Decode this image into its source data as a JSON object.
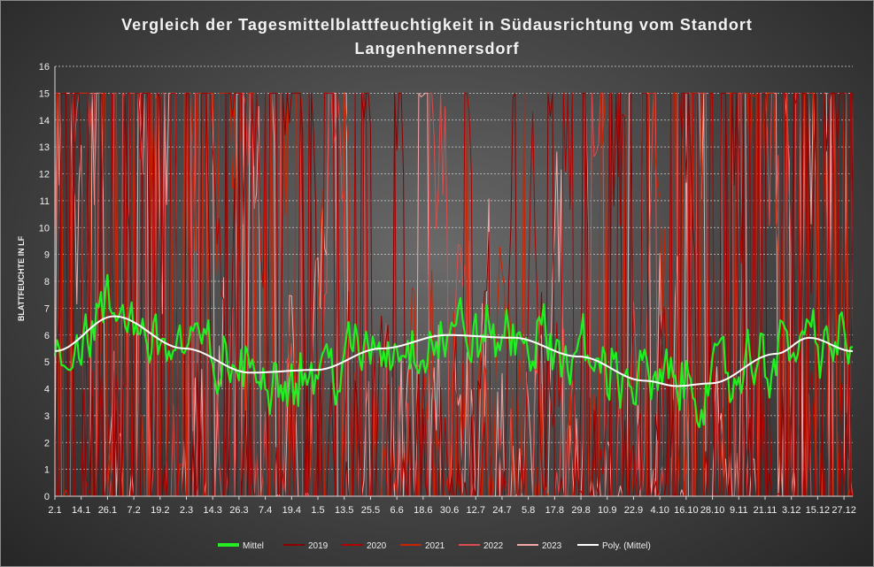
{
  "chart_data": {
    "type": "line",
    "title_line1": "Vergleich der Tagesmittelblattfeuchtigkeit in Südausrichtung vom Standort",
    "title_line2": "Langenhennersdorf",
    "ylabel": "BLATTFEUCHTE IN LF",
    "ylim": [
      0,
      16
    ],
    "yticks": [
      "0",
      "1",
      "2",
      "3",
      "4",
      "5",
      "6",
      "7",
      "8",
      "9",
      "10",
      "11",
      "12",
      "13",
      "14",
      "15",
      "16"
    ],
    "x_ticks": [
      "2.1",
      "14.1",
      "26.1",
      "7.2",
      "19.2",
      "2.3",
      "14.3",
      "26.3",
      "7.4",
      "19.4",
      "1.5",
      "13.5",
      "25.5",
      "6.6",
      "18.6",
      "30.6",
      "12.7",
      "24.7",
      "5.8",
      "17.8",
      "29.8",
      "10.9",
      "22.9",
      "4.10",
      "16.10",
      "28.10",
      "9.11",
      "21.11",
      "3.12",
      "15.12",
      "27.12"
    ],
    "grid": "horizontal dashed",
    "legend_position": "bottom",
    "series": [
      {
        "name": "Mittel",
        "color": "#22ee22"
      },
      {
        "name": "2019",
        "color": "#8b0000"
      },
      {
        "name": "2020",
        "color": "#b00000"
      },
      {
        "name": "2021",
        "color": "#cc2200"
      },
      {
        "name": "2022",
        "color": "#e04a4a"
      },
      {
        "name": "2023",
        "color": "#f4a7a7"
      },
      {
        "name": "Poly. (Mittel)",
        "color": "#ffffff"
      }
    ],
    "poly_mittel": {
      "x": [
        1,
        28,
        60,
        90,
        120,
        150,
        180,
        210,
        240,
        270,
        285,
        300,
        330,
        345,
        365
      ],
      "y": [
        5.4,
        6.7,
        5.5,
        4.6,
        4.7,
        5.5,
        6.0,
        5.9,
        5.2,
        4.3,
        4.1,
        4.2,
        5.3,
        5.9,
        5.4
      ]
    }
  }
}
